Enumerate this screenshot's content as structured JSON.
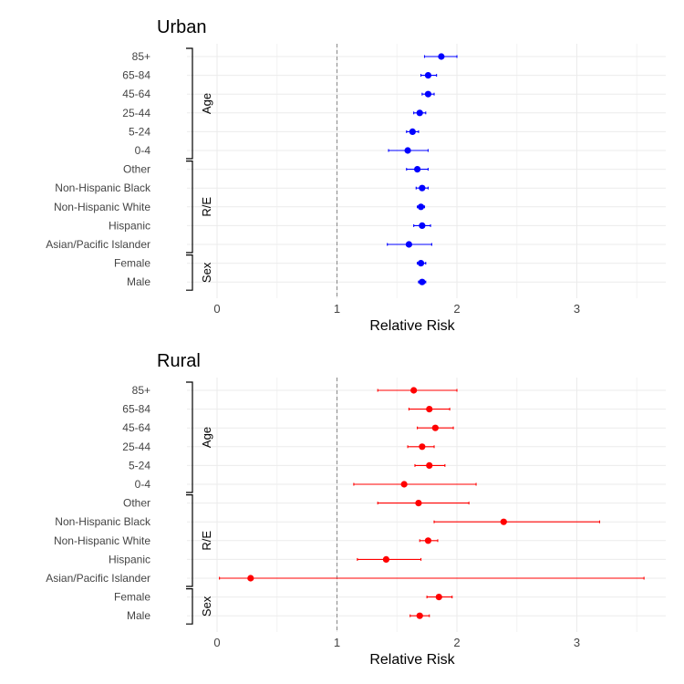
{
  "chart_data": [
    {
      "type": "forest",
      "title": "Urban",
      "xlabel": "Relative Risk",
      "xlim": [
        -0.25,
        3.6
      ],
      "xticks": [
        0,
        1,
        2,
        3
      ],
      "reference_line": 1,
      "color": "#0000ff",
      "grid": true,
      "categories": [
        "85+",
        "65-84",
        "45-64",
        "25-44",
        "5-24",
        "0-4",
        "Other",
        "Non-Hispanic Black",
        "Non-Hispanic White",
        "Hispanic",
        "Asian/Pacific Islander",
        "Female",
        "Male"
      ],
      "groups": [
        {
          "label": "Age",
          "from": 0,
          "to": 5
        },
        {
          "label": "R/E",
          "from": 6,
          "to": 10
        },
        {
          "label": "Sex",
          "from": 11,
          "to": 12
        }
      ],
      "values": [
        1.87,
        1.76,
        1.76,
        1.69,
        1.63,
        1.59,
        1.67,
        1.71,
        1.7,
        1.71,
        1.6,
        1.7,
        1.71
      ],
      "lower": [
        1.73,
        1.7,
        1.71,
        1.64,
        1.58,
        1.43,
        1.58,
        1.66,
        1.67,
        1.64,
        1.42,
        1.67,
        1.68
      ],
      "upper": [
        2.0,
        1.83,
        1.81,
        1.74,
        1.68,
        1.76,
        1.76,
        1.76,
        1.73,
        1.78,
        1.79,
        1.74,
        1.74
      ]
    },
    {
      "type": "forest",
      "title": "Rural",
      "xlabel": "Relative Risk",
      "xlim": [
        -0.25,
        3.6
      ],
      "xticks": [
        0,
        1,
        2,
        3
      ],
      "reference_line": 1,
      "color": "#ff0000",
      "grid": true,
      "categories": [
        "85+",
        "65-84",
        "45-64",
        "25-44",
        "5-24",
        "0-4",
        "Other",
        "Non-Hispanic Black",
        "Non-Hispanic White",
        "Hispanic",
        "Asian/Pacific Islander",
        "Female",
        "Male"
      ],
      "groups": [
        {
          "label": "Age",
          "from": 0,
          "to": 5
        },
        {
          "label": "R/E",
          "from": 6,
          "to": 10
        },
        {
          "label": "Sex",
          "from": 11,
          "to": 12
        }
      ],
      "values": [
        1.64,
        1.77,
        1.82,
        1.71,
        1.77,
        1.56,
        1.68,
        2.39,
        1.76,
        1.41,
        0.28,
        1.85,
        1.69
      ],
      "lower": [
        1.34,
        1.6,
        1.67,
        1.59,
        1.65,
        1.14,
        1.34,
        1.81,
        1.69,
        1.17,
        0.02,
        1.75,
        1.61
      ],
      "upper": [
        2.0,
        1.94,
        1.97,
        1.81,
        1.9,
        2.16,
        2.1,
        3.19,
        1.84,
        1.7,
        3.56,
        1.96,
        1.77
      ]
    }
  ]
}
